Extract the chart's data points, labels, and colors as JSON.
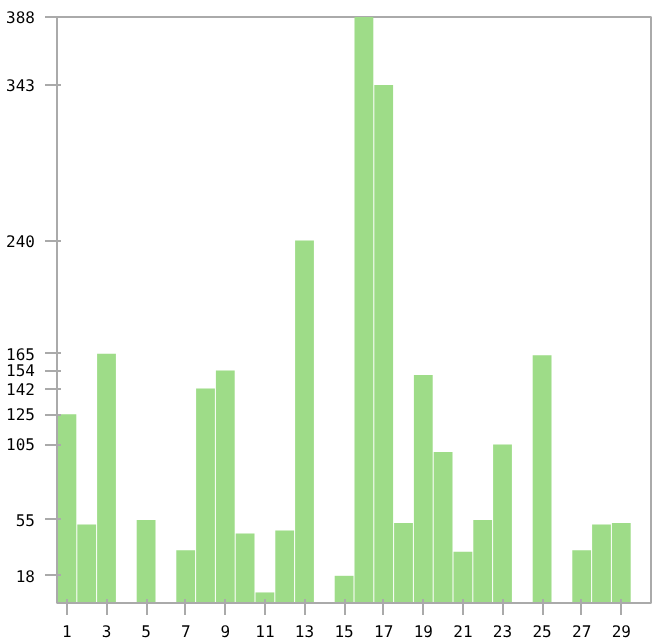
{
  "chart_data": {
    "type": "bar",
    "x": [
      1,
      2,
      3,
      4,
      5,
      6,
      7,
      8,
      9,
      10,
      11,
      12,
      13,
      14,
      15,
      16,
      17,
      18,
      19,
      20,
      21,
      22,
      23,
      24,
      25,
      26,
      27,
      28,
      29,
      30
    ],
    "values": [
      125,
      52,
      165,
      0,
      55,
      0,
      35,
      142,
      154,
      46,
      7,
      48,
      240,
      0,
      18,
      388,
      343,
      53,
      151,
      100,
      34,
      55,
      105,
      0,
      164,
      0,
      35,
      52,
      53,
      0
    ],
    "color": "#9edc88",
    "xlim": [
      0.5,
      30.5
    ],
    "xticks": [
      1,
      3,
      5,
      7,
      9,
      11,
      13,
      15,
      17,
      19,
      21,
      23,
      25,
      27,
      29
    ],
    "ylim": [
      0,
      388
    ],
    "yticks": [
      18,
      55,
      105,
      125,
      142,
      154,
      165,
      240,
      343,
      388
    ],
    "grid": false
  }
}
